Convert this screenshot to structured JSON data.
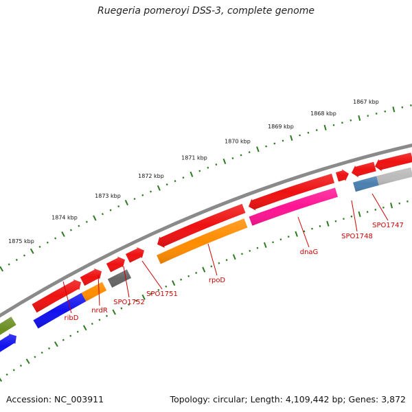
{
  "title": "Ruegeria pomeroyi DSS-3, complete genome",
  "footer": {
    "accession": "Accession: NC_003911",
    "topology": "Topology: circular; Length: 4,109,442 bp; Genes: 3,872"
  },
  "scale_labels": [
    "1875 kbp",
    "1874 kbp",
    "1873 kbp",
    "1872 kbp",
    "1871 kbp",
    "1870 kbp",
    "1869 kbp",
    "1868 kbp",
    "1867 kbp"
  ],
  "colors": {
    "backbone": "#8a8a8a",
    "tick": "#2a7a1e",
    "cds_red": "#ee1111",
    "olive": "#6b8e23",
    "blue": "#1111ee",
    "orange": "#ff8c00",
    "dark_grey": "#666666",
    "magenta": "#ff1493",
    "steel_blue": "#4a7fb0",
    "light_grey": "#bbbbbb",
    "label_red": "#cc0000"
  },
  "genes": [
    {
      "name": "ribD"
    },
    {
      "name": "nrdR"
    },
    {
      "name": "SPO1752"
    },
    {
      "name": "SPO1751"
    },
    {
      "name": "rpoD"
    },
    {
      "name": "dnaG"
    },
    {
      "name": "SPO1748"
    },
    {
      "name": "SPO1747"
    }
  ]
}
